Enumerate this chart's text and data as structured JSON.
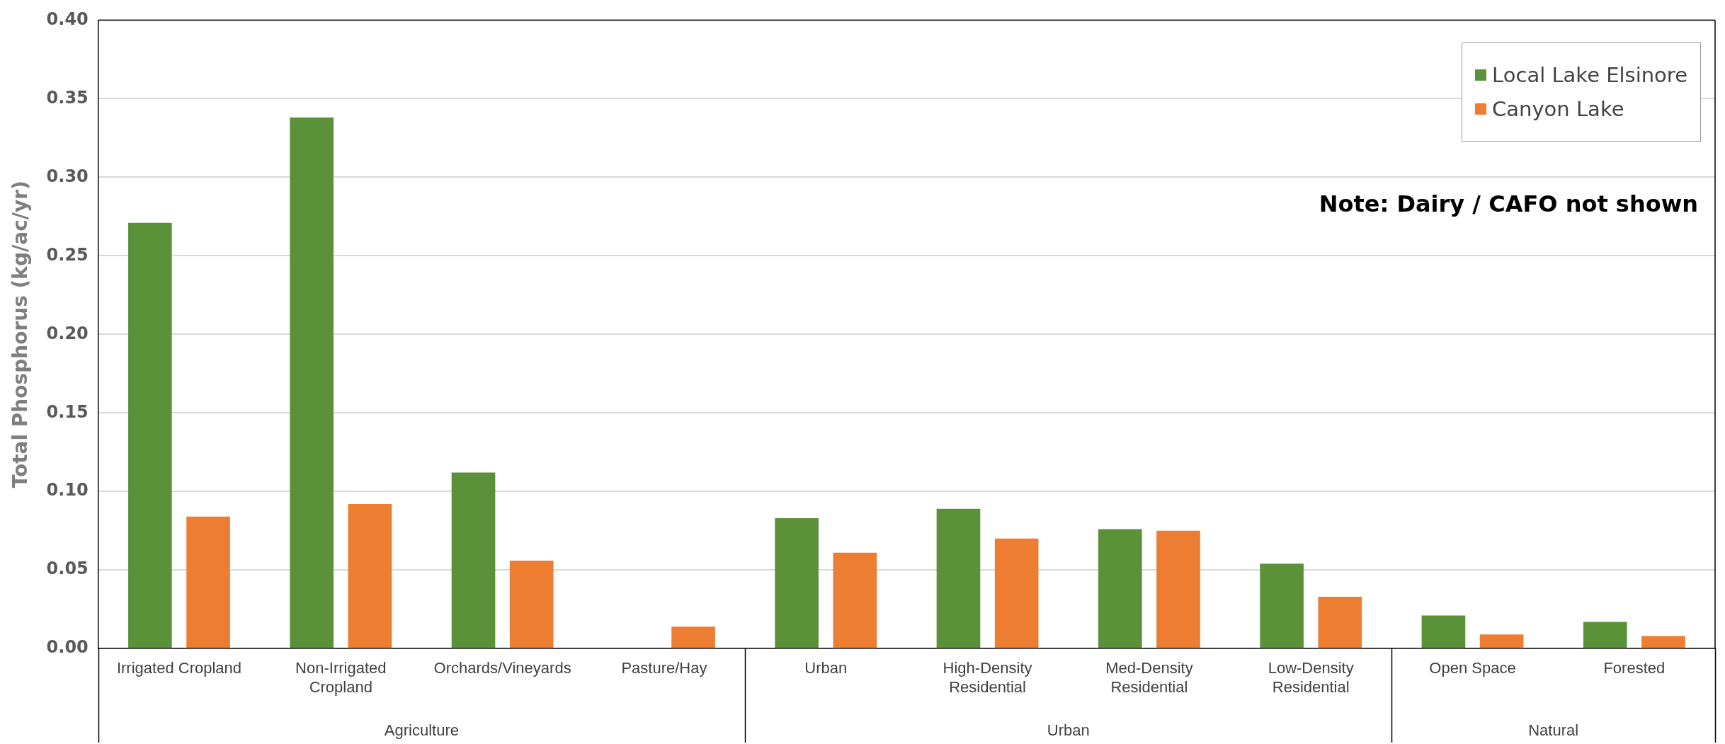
{
  "chart_data": {
    "type": "bar",
    "ylabel": "Total Phosphorus (kg/ac/yr)",
    "categories": [
      "Irrigated Cropland",
      "Non-Irrigated Cropland",
      "Orchards/Vineyards",
      "Pasture/Hay",
      "Urban",
      "High-Density Residential",
      "Med-Density Residential",
      "Low-Density Residential",
      "Open Space",
      "Forested"
    ],
    "series": [
      {
        "name": "Local Lake Elsinore",
        "color": "#5b9239",
        "values": [
          0.271,
          0.338,
          0.112,
          null,
          0.083,
          0.089,
          0.076,
          0.054,
          0.021,
          0.017
        ]
      },
      {
        "name": "Canyon Lake",
        "color": "#ed7d31",
        "values": [
          0.084,
          0.092,
          0.056,
          0.014,
          0.061,
          0.07,
          0.075,
          0.033,
          0.009,
          0.008
        ]
      }
    ],
    "ylim": [
      0,
      0.4
    ],
    "yticks": [
      {
        "value": 0,
        "label": "0.00"
      },
      {
        "value": 0.05,
        "label": "0.05"
      },
      {
        "value": 0.1,
        "label": "0.10"
      },
      {
        "value": 0.15,
        "label": "0.15"
      },
      {
        "value": 0.2,
        "label": "0.20"
      },
      {
        "value": 0.25,
        "label": "0.25"
      },
      {
        "value": 0.3,
        "label": "0.30"
      },
      {
        "value": 0.35,
        "label": "0.35"
      },
      {
        "value": 0.4,
        "label": "0.40"
      }
    ],
    "grid": "y",
    "legend": "top right",
    "annotations": [
      "Agriculture",
      "Urban",
      "Natural",
      "Note: Dairy / CAFO not shown"
    ]
  }
}
